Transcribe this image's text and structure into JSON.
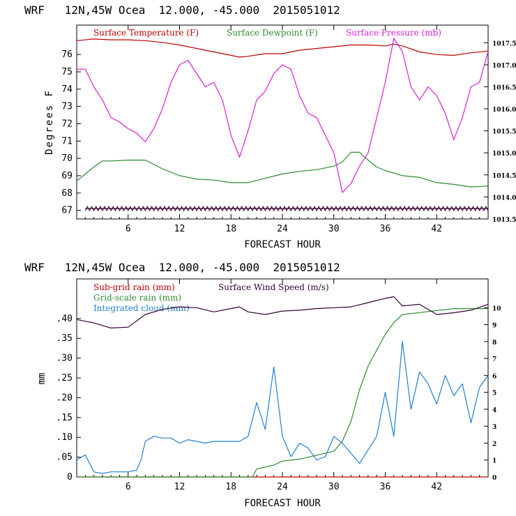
{
  "chart_data": [
    {
      "type": "line",
      "header": "WRF   12N,45W Ocea  12.000, -45.000  2015051012",
      "xlabel": "FORECAST HOUR",
      "ylabel": "Degrees F",
      "xlim": [
        0,
        48
      ],
      "x_ticks": [
        "6",
        "12",
        "18",
        "24",
        "30",
        "36",
        "42"
      ],
      "ylim": [
        66.5,
        77.7
      ],
      "y_ticks": [
        "76",
        "75",
        "74",
        "73",
        "72",
        "71",
        "70",
        "69",
        "68",
        "67"
      ],
      "y2lim": [
        1013.5,
        1017.9
      ],
      "y2_ticks": [
        "1017.5",
        "1017.0",
        "1016.5",
        "1016.0",
        "1015.5",
        "1015.0",
        "1014.5",
        "1014.0",
        "1013.5"
      ],
      "series": [
        {
          "name": "Surface Temperature (F)",
          "color": "#c00000",
          "axis": "left",
          "x": [
            0,
            2,
            4,
            6,
            8,
            10,
            12,
            14,
            16,
            18,
            19,
            20,
            22,
            24,
            26,
            28,
            30,
            32,
            34,
            36,
            37,
            38,
            40,
            42,
            44,
            46,
            48
          ],
          "y": [
            76.8,
            76.9,
            76.85,
            76.85,
            76.8,
            76.7,
            76.55,
            76.35,
            76.15,
            75.95,
            75.85,
            75.9,
            76.05,
            76.05,
            76.25,
            76.35,
            76.45,
            76.55,
            76.55,
            76.5,
            76.6,
            76.5,
            76.15,
            76.0,
            75.95,
            76.1,
            76.2
          ]
        },
        {
          "name": "Surface Dewpoint (F)",
          "color": "#2e8b2e",
          "axis": "left",
          "x": [
            0,
            1,
            2,
            3,
            4,
            6,
            8,
            10,
            12,
            14,
            16,
            18,
            20,
            22,
            24,
            26,
            28,
            30,
            31,
            32,
            33,
            34,
            35,
            36,
            38,
            40,
            42,
            44,
            46,
            48
          ],
          "y": [
            68.7,
            69.1,
            69.5,
            69.85,
            69.85,
            69.9,
            69.9,
            69.4,
            69.0,
            68.8,
            68.75,
            68.6,
            68.6,
            68.85,
            69.1,
            69.25,
            69.35,
            69.55,
            69.8,
            70.35,
            70.35,
            69.9,
            69.5,
            69.3,
            69.0,
            68.9,
            68.6,
            68.5,
            68.35,
            68.4
          ]
        },
        {
          "name": "Surface Pressure (mb)",
          "color": "#d81ed8",
          "axis": "right",
          "x": [
            0,
            1,
            2,
            3,
            4,
            5,
            6,
            7,
            8,
            9,
            10,
            11,
            12,
            13,
            14,
            15,
            16,
            17,
            18,
            19,
            20,
            21,
            22,
            23,
            24,
            25,
            26,
            27,
            28,
            29,
            30,
            31,
            32,
            33,
            34,
            35,
            36,
            37,
            38,
            39,
            40,
            41,
            42,
            43,
            44,
            45,
            46,
            47,
            48
          ],
          "y": [
            1016.9,
            1016.9,
            1016.5,
            1016.2,
            1015.8,
            1015.7,
            1015.55,
            1015.45,
            1015.25,
            1015.55,
            1016.0,
            1016.6,
            1017.0,
            1017.1,
            1016.8,
            1016.5,
            1016.6,
            1016.2,
            1015.4,
            1014.9,
            1015.5,
            1016.2,
            1016.4,
            1016.8,
            1017.0,
            1016.9,
            1016.3,
            1015.9,
            1015.8,
            1015.4,
            1015.0,
            1014.1,
            1014.3,
            1014.7,
            1015.0,
            1015.8,
            1016.6,
            1017.6,
            1017.3,
            1016.5,
            1016.2,
            1016.5,
            1016.3,
            1015.9,
            1015.3,
            1015.8,
            1016.5,
            1016.6,
            1017.3
          ]
        },
        {
          "name": "",
          "color": "#330033",
          "axis": "left",
          "x": [
            1,
            48
          ],
          "y": [
            67.1,
            67.1
          ]
        }
      ]
    },
    {
      "type": "line",
      "header": "WRF   12N,45W Ocea  12.000, -45.000  2015051012",
      "xlabel": "FORECAST HOUR",
      "ylabel": "mm",
      "xlim": [
        0,
        48
      ],
      "x_ticks": [
        "6",
        "12",
        "18",
        "24",
        "30",
        "36",
        "42"
      ],
      "ylim": [
        0,
        0.5
      ],
      "y_ticks": [
        "0",
        ".05",
        ".10",
        ".15",
        ".20",
        ".25",
        ".30",
        ".35",
        ".40"
      ],
      "y2lim": [
        0,
        11.7
      ],
      "y2_ticks": [
        "0",
        "1",
        "2",
        "3",
        "4",
        "5",
        "6",
        "7",
        "8",
        "9",
        "10"
      ],
      "series": [
        {
          "name": "Sub-grid rain (mm)",
          "color": "#c00000",
          "axis": "left",
          "x": [
            0,
            48
          ],
          "y": [
            0,
            0
          ]
        },
        {
          "name": "Grid-scale rain (mm)",
          "color": "#2e8b2e",
          "axis": "left",
          "x": [
            0,
            20.5,
            21,
            23,
            24,
            26,
            28,
            30,
            31,
            32,
            33,
            34,
            35,
            36,
            37,
            38,
            40,
            42,
            44,
            46,
            48
          ],
          "y": [
            0,
            0,
            0.02,
            0.03,
            0.04,
            0.045,
            0.055,
            0.065,
            0.09,
            0.14,
            0.22,
            0.28,
            0.32,
            0.36,
            0.39,
            0.41,
            0.415,
            0.42,
            0.425,
            0.425,
            0.425
          ]
        },
        {
          "name": "Integrated cloud (mm)",
          "color": "#1f7fd6",
          "axis": "right",
          "x": [
            0,
            1,
            2,
            3,
            4,
            5,
            6,
            7,
            7.5,
            8,
            9,
            10,
            11,
            12,
            13,
            14,
            15,
            16,
            17,
            18,
            19,
            20,
            21,
            22,
            23,
            24,
            25,
            26,
            27,
            28,
            29,
            30,
            31,
            32,
            33,
            34,
            35,
            36,
            37,
            38,
            39,
            40,
            41,
            42,
            43,
            44,
            45,
            46,
            47,
            48
          ],
          "y": [
            1.0,
            1.3,
            0.3,
            0.2,
            0.3,
            0.3,
            0.3,
            0.4,
            1.0,
            2.1,
            2.4,
            2.3,
            2.3,
            2.0,
            2.2,
            2.1,
            2.0,
            2.1,
            2.1,
            2.1,
            2.1,
            2.4,
            4.4,
            2.8,
            6.5,
            2.4,
            1.2,
            2.0,
            1.7,
            1.0,
            1.2,
            2.4,
            2.0,
            1.4,
            0.8,
            1.6,
            2.4,
            5.0,
            2.4,
            8.0,
            4.0,
            6.2,
            5.5,
            4.3,
            6.0,
            4.8,
            5.5,
            3.2,
            5.3,
            6.0
          ]
        },
        {
          "name": "Surface Wind Speed (m/s)",
          "color": "#330033",
          "axis": "right",
          "x": [
            0,
            2,
            4,
            6,
            8,
            10,
            12,
            14,
            16,
            18,
            19,
            20,
            22,
            24,
            26,
            28,
            30,
            32,
            34,
            36,
            37,
            38,
            40,
            42,
            44,
            46,
            48
          ],
          "y": [
            9.3,
            9.1,
            8.8,
            8.85,
            9.6,
            9.9,
            10.05,
            10.0,
            9.75,
            9.95,
            10.05,
            9.75,
            9.6,
            9.8,
            9.85,
            9.95,
            10.0,
            10.05,
            10.3,
            10.55,
            10.65,
            10.1,
            10.2,
            9.6,
            9.7,
            9.85,
            10.2
          ]
        }
      ]
    }
  ]
}
